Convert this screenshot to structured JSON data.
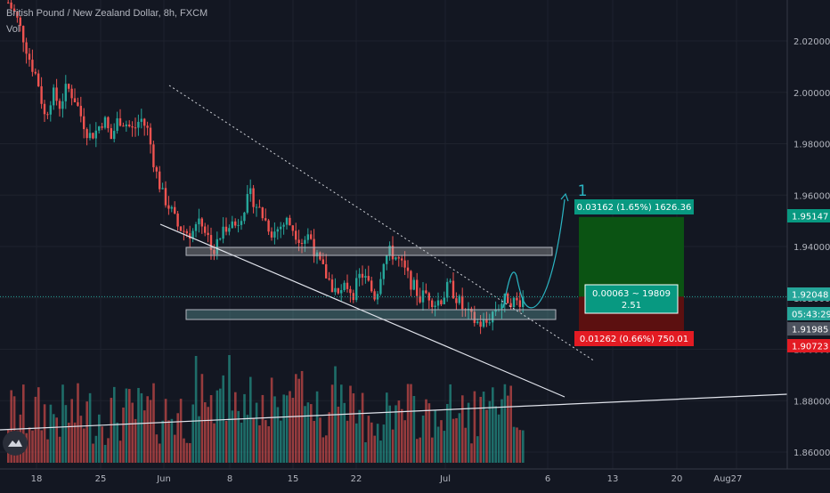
{
  "header": {
    "title": "British Pound / New Zealand Dollar, 8h, FXCM",
    "volume_label": "Vol"
  },
  "chart_data": {
    "type": "candlestick",
    "symbol": "British Pound / New Zealand Dollar",
    "timeframe": "8h",
    "source": "FXCM",
    "ylim": [
      1.855,
      2.04
    ],
    "y_ticks": [
      "2.02000",
      "2.00000",
      "1.98000",
      "1.96000",
      "1.94000",
      "1.92000",
      "1.90000",
      "1.88000",
      "1.86000"
    ],
    "x_ticks": [
      "18",
      "25",
      "Jun",
      "8",
      "15",
      "22",
      "Jul",
      "6",
      "13",
      "20",
      "27",
      "Aug"
    ],
    "close_path": [
      2.035,
      2.03,
      2.022,
      2.012,
      2.005,
      1.99,
      2.0,
      1.995,
      2.002,
      1.998,
      1.99,
      1.983,
      1.985,
      1.99,
      1.982,
      1.99,
      1.988,
      1.985,
      1.99,
      1.985,
      1.97,
      1.96,
      1.955,
      1.948,
      1.946,
      1.945,
      1.952,
      1.945,
      1.938,
      1.945,
      1.95,
      1.948,
      1.955,
      1.96,
      1.955,
      1.95,
      1.945,
      1.948,
      1.95,
      1.946,
      1.942,
      1.945,
      1.935,
      1.93,
      1.925,
      1.92,
      1.925,
      1.922,
      1.93,
      1.925,
      1.92,
      1.935,
      1.938,
      1.935,
      1.93,
      1.925,
      1.92,
      1.922,
      1.918,
      1.92,
      1.925,
      1.92,
      1.915,
      1.912,
      1.91,
      1.91,
      1.915,
      1.918,
      1.92,
      1.918,
      1.92
    ],
    "annotations": {
      "target_label": "0.03162 (1.65%) 1626.36",
      "entry_label_line1": "0.00063 ~ 19809",
      "entry_label_line2": "2.51",
      "stop_label": "0.01262 (0.66%) 750.01",
      "wave_marker": "1",
      "target_price": 1.95147,
      "entry_price": 1.92048,
      "stop_price": 1.90723
    },
    "price_tags": [
      {
        "label": "1.95147",
        "color": "#089981"
      },
      {
        "label": "1.92048",
        "color": "#26a69a"
      },
      {
        "label": "05:43:29",
        "color": "#26a69a"
      },
      {
        "label": "1.91985",
        "color": "#4c525e"
      },
      {
        "label": "1.90723",
        "color": "#e31b23"
      }
    ],
    "colors": {
      "up": "#26a69a",
      "down": "#ef5350",
      "target_zone": "#0b5313",
      "stop_zone": "#5c1010",
      "wave": "#2bb6c4"
    }
  }
}
